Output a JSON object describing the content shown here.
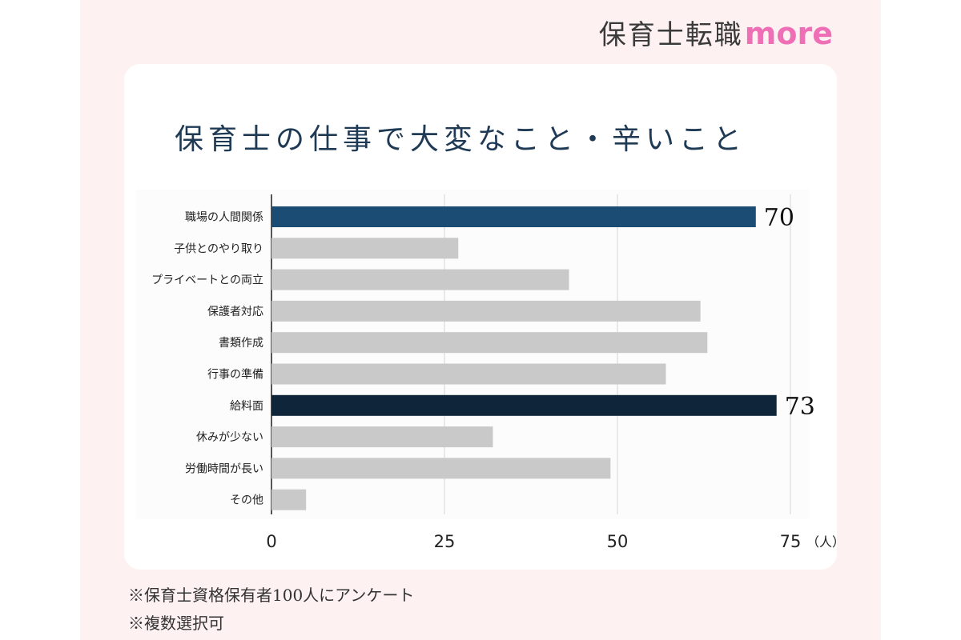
{
  "brand": {
    "name_jp": "保育士転職",
    "name_en": "more"
  },
  "colors": {
    "highlight_primary": "#1b4d74",
    "highlight_secondary": "#0f263a",
    "default_bar": "#c9c9c9",
    "brand_pink": "#ef6fb7"
  },
  "chart_data": {
    "type": "bar",
    "orientation": "horizontal",
    "title": "保育士の仕事で大変なこと・辛いこと",
    "categories": [
      "職場の人間関係",
      "子供とのやり取り",
      "プライベートとの両立",
      "保護者対応",
      "書類作成",
      "行事の準備",
      "給料面",
      "休みが少ない",
      "労働時間が長い",
      "その他"
    ],
    "values": [
      70,
      27,
      43,
      62,
      63,
      57,
      73,
      32,
      49,
      5
    ],
    "data_labels": [
      "70",
      "",
      "",
      "",
      "",
      "",
      "73",
      "",
      "",
      ""
    ],
    "highlight": [
      1,
      0,
      0,
      0,
      0,
      0,
      2,
      0,
      0,
      0
    ],
    "xlim": [
      0,
      75
    ],
    "xticks": [
      0,
      25,
      50,
      75
    ],
    "xunit": "（人）",
    "grid": true
  },
  "notes": [
    "※保育士資格保有者100人にアンケート",
    "※複数選択可"
  ]
}
